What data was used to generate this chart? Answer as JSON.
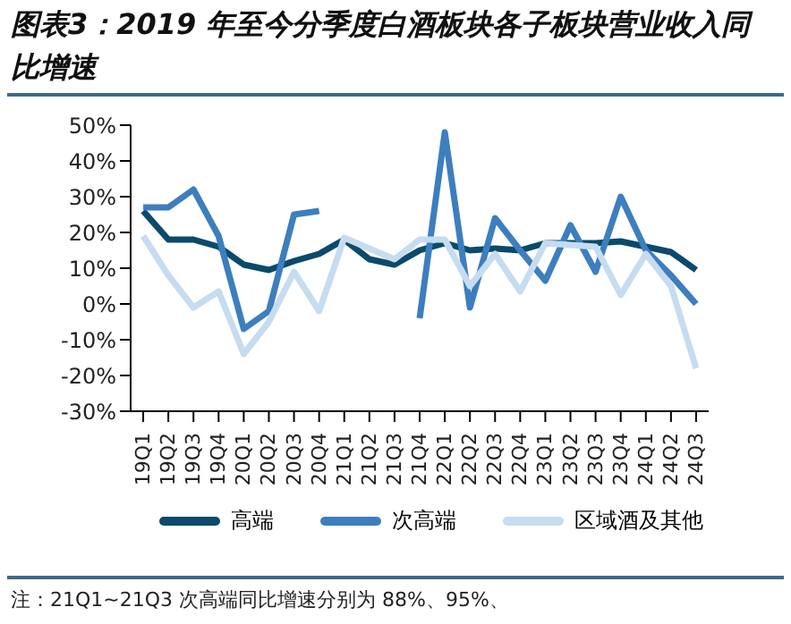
{
  "chart_data": {
    "type": "line",
    "title": "图表3：2019 年至今分季度白酒板块各子板块营业收入同比增速",
    "categories": [
      "19Q1",
      "19Q2",
      "19Q3",
      "19Q4",
      "20Q1",
      "20Q2",
      "20Q3",
      "20Q4",
      "21Q1",
      "21Q2",
      "21Q3",
      "21Q4",
      "22Q1",
      "22Q2",
      "22Q3",
      "22Q4",
      "23Q1",
      "23Q2",
      "23Q3",
      "23Q4",
      "24Q1",
      "24Q2",
      "24Q3"
    ],
    "series": [
      {
        "name": "高端",
        "color": "#0b4a6b",
        "values": [
          26,
          18,
          18,
          16,
          11,
          9.5,
          12,
          14,
          18,
          12.5,
          11,
          15,
          17,
          15,
          15.5,
          15,
          17,
          17,
          17,
          17.5,
          16,
          14.5,
          9.5
        ]
      },
      {
        "name": "次高端",
        "color": "#3d7ebf",
        "values": [
          27,
          27,
          32,
          19,
          -7,
          -2,
          25,
          26,
          null,
          null,
          null,
          -4,
          48,
          -1,
          24,
          15,
          6.5,
          22,
          9,
          30,
          15,
          8,
          0
        ]
      },
      {
        "name": "区域酒及其他",
        "color": "#c6dcf0",
        "values": [
          19,
          8,
          -1,
          3.5,
          -14,
          -5,
          9,
          -2,
          18.5,
          15.5,
          12.5,
          18,
          18,
          5,
          14,
          3.5,
          17,
          16.5,
          16,
          2.5,
          14,
          5,
          -18
        ]
      }
    ],
    "ylim": [
      -30,
      50
    ],
    "yticks": [
      {
        "value": -30,
        "label": "-30%"
      },
      {
        "value": -20,
        "label": "-20%"
      },
      {
        "value": -10,
        "label": "-10%"
      },
      {
        "value": 0,
        "label": "0%"
      },
      {
        "value": 10,
        "label": "10%"
      },
      {
        "value": 20,
        "label": "20%"
      },
      {
        "value": 30,
        "label": "30%"
      },
      {
        "value": 40,
        "label": "40%"
      },
      {
        "value": 50,
        "label": "50%"
      }
    ],
    "legend": "bottom",
    "marker": "none",
    "annotations": [
      "注：21Q1~21Q3 次高端同比增速分别为 88%、95%、"
    ]
  }
}
